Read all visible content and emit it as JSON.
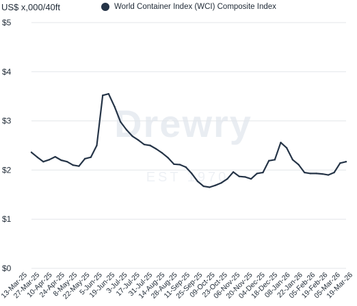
{
  "header": {
    "unit_label": "US$ x,000/40ft"
  },
  "watermark": {
    "brand": "Drewry",
    "sub": "EST 1970"
  },
  "colors": {
    "series": "#253447",
    "grid": "#e3e6ea"
  },
  "chart_data": {
    "type": "line",
    "title": "",
    "xlabel": "",
    "ylabel": "US$ x,000/40ft",
    "ylim": [
      0,
      5
    ],
    "yticks": [
      0,
      1,
      2,
      3,
      4,
      5
    ],
    "ytick_labels": [
      "$0",
      "$1",
      "$2",
      "$3",
      "$4",
      "$5"
    ],
    "grid": "horizontal",
    "legend_position": "top",
    "x": [
      "13-Mar-25",
      "20-Mar-25",
      "27-Mar-25",
      "3-Apr-25",
      "10-Apr-25",
      "17-Apr-25",
      "24-Apr-25",
      "1-May-25",
      "8-May-25",
      "15-May-25",
      "22-May-25",
      "29-May-25",
      "5-Jun-25",
      "12-Jun-25",
      "19-Jun-25",
      "26-Jun-25",
      "3-Jul-25",
      "10-Jul-25",
      "17-Jul-25",
      "24-Jul-25",
      "31-Jul-25",
      "7-Aug-25",
      "14-Aug-25",
      "21-Aug-25",
      "28-Aug-25",
      "4-Sep-25",
      "11-Sep-25",
      "18-Sep-25",
      "25-Sep-25",
      "2-Oct-25",
      "9-Oct-25",
      "16-Oct-25",
      "23-Oct-25",
      "30-Oct-25",
      "6-Nov-25",
      "13-Nov-25",
      "20-Nov-25",
      "27-Nov-25",
      "4-Dec-25",
      "11-Dec-25",
      "18-Dec-25",
      "25-Dec-25",
      "1-Jan-26",
      "8-Jan-26",
      "15-Jan-26",
      "22-Jan-26",
      "29-Jan-26",
      "5-Feb-26",
      "12-Feb-26",
      "19-Feb-26",
      "26-Feb-26",
      "5-Mar-26",
      "12-Mar-26",
      "19-Mar-26"
    ],
    "xtick_labels": [
      "13-Mar-25",
      "27-Mar-25",
      "10-Apr-25",
      "24-Apr-25",
      "8-May-25",
      "22-May-25",
      "5-Jun-25",
      "19-Jun-25",
      "3-Jul-25",
      "17-Jul-25",
      "31-Jul-25",
      "14-Aug-25",
      "28-Aug-25",
      "11-Sep-25",
      "25-Sep-25",
      "09-Oct-25",
      "23-Oct-25",
      "06-Nov-25",
      "20-Nov-25",
      "04-Dec-25",
      "18-Dec-25",
      "08-Jan-26",
      "22-Jan-26",
      "05-Feb-26",
      "19-Feb-26",
      "05-Mar-26",
      "19-Mar-26"
    ],
    "series": [
      {
        "name": "World Container Index (WCI) Composite Index",
        "values": [
          2.36,
          2.26,
          2.17,
          2.21,
          2.27,
          2.2,
          2.17,
          2.1,
          2.08,
          2.23,
          2.26,
          2.5,
          3.52,
          3.55,
          3.29,
          2.98,
          2.82,
          2.69,
          2.61,
          2.52,
          2.5,
          2.43,
          2.35,
          2.25,
          2.12,
          2.11,
          2.06,
          1.93,
          1.77,
          1.67,
          1.65,
          1.69,
          1.74,
          1.82,
          1.96,
          1.87,
          1.86,
          1.82,
          1.93,
          1.95,
          2.19,
          2.21,
          2.56,
          2.45,
          2.21,
          2.11,
          1.95,
          1.93,
          1.93,
          1.92,
          1.9,
          1.95,
          2.14,
          2.17
        ]
      }
    ]
  }
}
